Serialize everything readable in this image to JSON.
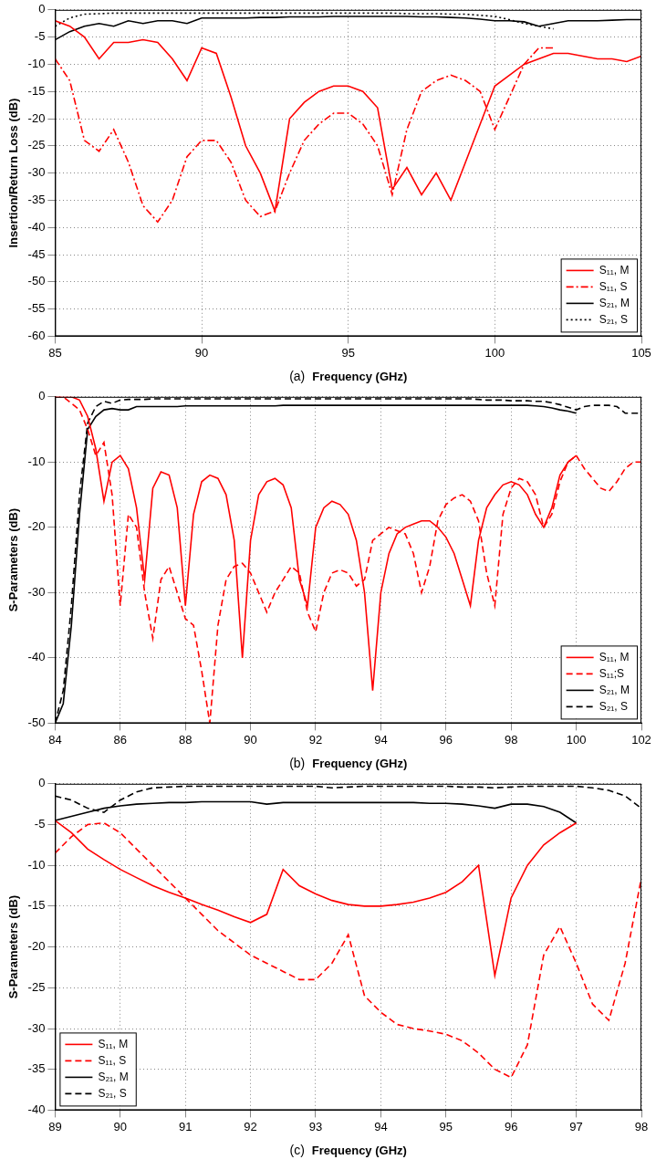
{
  "chart_data": [
    {
      "type": "line",
      "caption": "(a)",
      "x_label": "Frequency (GHz)",
      "y_label": "Insertion/Return Loss (dB)",
      "x": [
        85,
        85.5,
        86,
        86.5,
        87,
        87.5,
        88,
        88.5,
        89,
        89.5,
        90,
        90.5,
        91,
        91.5,
        92,
        92.5,
        93,
        93.5,
        94,
        94.5,
        95,
        95.5,
        96,
        96.5,
        97,
        97.5,
        98,
        98.5,
        99,
        99.5,
        100,
        100.5,
        101,
        101.5,
        102,
        102.5,
        103,
        103.5,
        104,
        104.5,
        105
      ],
      "xlim": [
        85,
        105
      ],
      "xticks": [
        85,
        90,
        95,
        100,
        105
      ],
      "ylim": [
        -60,
        0
      ],
      "yticks": [
        -60,
        -55,
        -50,
        -45,
        -40,
        -35,
        -30,
        -25,
        -20,
        -15,
        -10,
        -5,
        0
      ],
      "grid": true,
      "legend": "lower right",
      "series": [
        {
          "name": "S₁₁, M",
          "color": "#ff0000",
          "line_style": "solid",
          "values": [
            -2,
            -3,
            -5,
            -9,
            -6,
            -6,
            -5.5,
            -6,
            -9,
            -13,
            -7,
            -8,
            -16,
            -25,
            -30,
            -37,
            -20,
            -17,
            -15,
            -14,
            -14,
            -15,
            -18,
            -33,
            -29,
            -34,
            -30,
            -35,
            -28,
            -21,
            -14,
            -12,
            -10,
            -9,
            -8,
            -8,
            -8.5,
            -9,
            -9,
            -9.5,
            -8.5
          ]
        },
        {
          "name": "S₁₁, S",
          "color": "#ff0000",
          "line_style": "dashdot",
          "values": [
            -9,
            -13,
            -24,
            -26,
            -22,
            -28,
            -36,
            -39,
            -35,
            -27,
            -24,
            -24,
            -28,
            -35,
            -38,
            -37,
            -30,
            -24,
            -21,
            -19,
            -19,
            -21,
            -25,
            -34,
            -22,
            -15,
            -13,
            -12,
            -13,
            -15,
            -22,
            -16,
            -10,
            -7,
            -7,
            null,
            null,
            null,
            null,
            null,
            null
          ]
        },
        {
          "name": "S₂₁, M",
          "color": "#000000",
          "line_style": "solid",
          "values": [
            -5.5,
            -4,
            -3,
            -2.5,
            -3,
            -2,
            -2.5,
            -2,
            -2,
            -2.5,
            -1.5,
            -1.5,
            -1.5,
            -1.5,
            -1.4,
            -1.4,
            -1.3,
            -1.3,
            -1.3,
            -1.2,
            -1.2,
            -1.2,
            -1.2,
            -1.2,
            -1.2,
            -1.3,
            -1.3,
            -1.4,
            -1.5,
            -1.7,
            -2,
            -2,
            -2.2,
            -3,
            -2.5,
            -2,
            -2,
            -2,
            -1.9,
            -1.8,
            -1.8
          ]
        },
        {
          "name": "S₂₁, S",
          "color": "#000000",
          "line_style": "dotted",
          "values": [
            -3,
            -1.5,
            -0.8,
            -0.7,
            -0.6,
            -0.6,
            -0.6,
            -0.6,
            -0.6,
            -0.6,
            -0.6,
            -0.6,
            -0.6,
            -0.6,
            -0.6,
            -0.6,
            -0.6,
            -0.6,
            -0.6,
            -0.6,
            -0.6,
            -0.6,
            -0.6,
            -0.6,
            -0.7,
            -0.7,
            -0.7,
            -0.8,
            -0.8,
            -1,
            -1.2,
            -1.8,
            -2.5,
            -3,
            -3.5,
            null,
            null,
            null,
            null,
            null,
            null
          ]
        }
      ]
    },
    {
      "type": "line",
      "caption": "(b)",
      "x_label": "Frequency (GHz)",
      "y_label": "S-Parameters (dB)",
      "x": [
        84,
        84.25,
        84.5,
        84.75,
        85,
        85.25,
        85.5,
        85.75,
        86,
        86.25,
        86.5,
        86.75,
        87,
        87.25,
        87.5,
        87.75,
        88,
        88.25,
        88.5,
        88.75,
        89,
        89.25,
        89.5,
        89.75,
        90,
        90.25,
        90.5,
        90.75,
        91,
        91.25,
        91.5,
        91.75,
        92,
        92.25,
        92.5,
        92.75,
        93,
        93.25,
        93.5,
        93.75,
        94,
        94.25,
        94.5,
        94.75,
        95,
        95.25,
        95.5,
        95.75,
        96,
        96.25,
        96.5,
        96.75,
        97,
        97.25,
        97.5,
        97.75,
        98,
        98.25,
        98.5,
        98.75,
        99,
        99.25,
        99.5,
        99.75,
        100,
        100.25,
        100.5,
        100.75,
        101,
        101.25,
        101.5,
        101.75,
        102
      ],
      "xlim": [
        84,
        102
      ],
      "xticks": [
        84,
        86,
        88,
        90,
        92,
        94,
        96,
        98,
        100,
        102
      ],
      "ylim": [
        -50,
        0
      ],
      "yticks": [
        -50,
        -40,
        -30,
        -20,
        -10,
        0
      ],
      "grid": true,
      "legend": "lower right",
      "series": [
        {
          "name": "S₁₁, M",
          "color": "#ff0000",
          "line_style": "solid",
          "values": [
            0,
            0,
            0,
            -0.5,
            -3,
            -8,
            -16,
            -10,
            -9,
            -11,
            -17,
            -28,
            -14,
            -11.5,
            -12,
            -17,
            -32,
            -18,
            -13,
            -12,
            -12.5,
            -15,
            -22,
            -40,
            -22,
            -15,
            -13,
            -12.5,
            -13.5,
            -17,
            -28,
            -32,
            -20,
            -17,
            -16,
            -16.5,
            -18,
            -22,
            -30,
            -45,
            -30,
            -24,
            -21,
            -20,
            -19.5,
            -19,
            -19,
            -20,
            -21.5,
            -24,
            -28,
            -32,
            -22,
            -17,
            -15,
            -13.5,
            -13,
            -13.5,
            -15,
            -18,
            -20,
            -17,
            -12,
            -10,
            -9,
            null,
            null,
            null,
            null,
            null,
            null,
            null,
            null
          ]
        },
        {
          "name": "S₁₁;S",
          "color": "#ff0000",
          "line_style": "dashed",
          "values": [
            0,
            0,
            -1,
            -2,
            -5,
            -9,
            -7,
            -15,
            -32,
            -18,
            -20,
            -30,
            -37,
            -28,
            -26,
            -30,
            -34,
            -35,
            -42,
            -50,
            -35,
            -28,
            -26,
            -25.5,
            -27,
            -30,
            -33,
            -30,
            -28,
            -26,
            -27,
            -33,
            -36,
            -30,
            -27,
            -26.5,
            -27,
            -29,
            -28,
            -22,
            -21,
            -20,
            -20.5,
            -21,
            -24,
            -30,
            -26,
            -19,
            -16.5,
            -15.5,
            -15,
            -16,
            -19,
            -27,
            -32,
            -18,
            -14,
            -12.5,
            -13,
            -15,
            -20,
            -18,
            -13,
            -10,
            -9,
            -11,
            -12.5,
            -14,
            -14.5,
            -13,
            -11,
            -10,
            -10
          ]
        },
        {
          "name": "S₂₁, M",
          "color": "#000000",
          "line_style": "solid",
          "values": [
            -50,
            -47,
            -35,
            -18,
            -5,
            -3,
            -2,
            -1.8,
            -2,
            -2,
            -1.5,
            -1.5,
            -1.5,
            -1.5,
            -1.5,
            -1.5,
            -1.4,
            -1.4,
            -1.4,
            -1.4,
            -1.4,
            -1.4,
            -1.4,
            -1.4,
            -1.4,
            -1.4,
            -1.4,
            -1.4,
            -1.3,
            -1.3,
            -1.3,
            -1.3,
            -1.3,
            -1.3,
            -1.3,
            -1.3,
            -1.3,
            -1.3,
            -1.3,
            -1.3,
            -1.3,
            -1.3,
            -1.3,
            -1.3,
            -1.3,
            -1.3,
            -1.3,
            -1.3,
            -1.3,
            -1.3,
            -1.3,
            -1.3,
            -1.3,
            -1.3,
            -1.3,
            -1.3,
            -1.3,
            -1.3,
            -1.3,
            -1.4,
            -1.5,
            -1.7,
            -2,
            -2.2,
            -2.5,
            null,
            null,
            null,
            null,
            null,
            null,
            null,
            null
          ]
        },
        {
          "name": "S₂₁, S",
          "color": "#000000",
          "line_style": "dashed",
          "values": [
            -50,
            -45,
            -32,
            -15,
            -4,
            -1.5,
            -0.7,
            -1,
            -0.5,
            -0.4,
            -0.4,
            -0.4,
            -0.3,
            -0.3,
            -0.3,
            -0.3,
            -0.3,
            -0.3,
            -0.3,
            -0.3,
            -0.3,
            -0.3,
            -0.3,
            -0.3,
            -0.3,
            -0.3,
            -0.3,
            -0.3,
            -0.3,
            -0.3,
            -0.3,
            -0.3,
            -0.3,
            -0.3,
            -0.3,
            -0.3,
            -0.3,
            -0.3,
            -0.3,
            -0.3,
            -0.3,
            -0.3,
            -0.3,
            -0.3,
            -0.3,
            -0.3,
            -0.3,
            -0.3,
            -0.3,
            -0.3,
            -0.3,
            -0.3,
            -0.4,
            -0.5,
            -0.5,
            -0.5,
            -0.6,
            -0.6,
            -0.6,
            -0.7,
            -0.7,
            -0.9,
            -1.2,
            -1.6,
            -2,
            -1.5,
            -1.3,
            -1.3,
            -1.3,
            -1.5,
            -2.5,
            -2.5,
            -2.5
          ]
        }
      ]
    },
    {
      "type": "line",
      "caption": "(c)",
      "x_label": "Frequency (GHz)",
      "y_label": "S-Parameters (dB)",
      "x": [
        89,
        89.25,
        89.5,
        89.75,
        90,
        90.25,
        90.5,
        90.75,
        91,
        91.25,
        91.5,
        91.75,
        92,
        92.25,
        92.5,
        92.75,
        93,
        93.25,
        93.5,
        93.75,
        94,
        94.25,
        94.5,
        94.75,
        95,
        95.25,
        95.5,
        95.75,
        96,
        96.25,
        96.5,
        96.75,
        97,
        97.25,
        97.5,
        97.75,
        98
      ],
      "xlim": [
        89,
        98
      ],
      "xticks": [
        89,
        90,
        91,
        92,
        93,
        94,
        95,
        96,
        97,
        98
      ],
      "ylim": [
        -40,
        0
      ],
      "yticks": [
        -40,
        -35,
        -30,
        -25,
        -20,
        -15,
        -10,
        -5,
        0
      ],
      "grid": true,
      "legend": "lower left",
      "series": [
        {
          "name": "S₁₁, M",
          "color": "#ff0000",
          "line_style": "solid",
          "values": [
            -4.5,
            -6,
            -8,
            -9.3,
            -10.5,
            -11.5,
            -12.5,
            -13.3,
            -14,
            -14.8,
            -15.5,
            -16.3,
            -17,
            -16,
            -10.5,
            -12.5,
            -13.5,
            -14.3,
            -14.8,
            -15,
            -15,
            -14.8,
            -14.5,
            -14,
            -13.3,
            -12,
            -10,
            -23.5,
            -14,
            -10,
            -7.5,
            -6,
            -4.8,
            null,
            null,
            null,
            null
          ]
        },
        {
          "name": "S₁₁, S",
          "color": "#ff0000",
          "line_style": "dashed",
          "values": [
            -8.5,
            -6.5,
            -5,
            -4.8,
            -6,
            -8,
            -10,
            -12,
            -14,
            -16,
            -18,
            -19.5,
            -21,
            -22,
            -23,
            -24,
            -24,
            -22,
            -18.5,
            -26,
            -28,
            -29.5,
            -30,
            -30.3,
            -30.7,
            -31.5,
            -33,
            -35,
            -36,
            -32,
            -21,
            -17.5,
            -22,
            -27,
            -29,
            -22,
            -11.5
          ]
        },
        {
          "name": "S₂₁, M",
          "color": "#000000",
          "line_style": "solid",
          "values": [
            -4.5,
            -4,
            -3.5,
            -3,
            -2.7,
            -2.5,
            -2.4,
            -2.3,
            -2.3,
            -2.2,
            -2.2,
            -2.2,
            -2.2,
            -2.5,
            -2.3,
            -2.3,
            -2.3,
            -2.3,
            -2.3,
            -2.3,
            -2.3,
            -2.3,
            -2.3,
            -2.4,
            -2.4,
            -2.5,
            -2.7,
            -3,
            -2.5,
            -2.5,
            -2.8,
            -3.5,
            -4.8,
            null,
            null,
            null,
            null
          ]
        },
        {
          "name": "S₂₁, S",
          "color": "#000000",
          "line_style": "dashed",
          "values": [
            -1.5,
            -2,
            -3,
            -3.5,
            -2,
            -1,
            -0.5,
            -0.4,
            -0.3,
            -0.3,
            -0.3,
            -0.3,
            -0.3,
            -0.3,
            -0.3,
            -0.3,
            -0.3,
            -0.5,
            -0.4,
            -0.3,
            -0.3,
            -0.3,
            -0.3,
            -0.3,
            -0.3,
            -0.4,
            -0.4,
            -0.5,
            -0.4,
            -0.3,
            -0.3,
            -0.3,
            -0.3,
            -0.5,
            -0.8,
            -1.5,
            -3
          ]
        }
      ]
    }
  ]
}
